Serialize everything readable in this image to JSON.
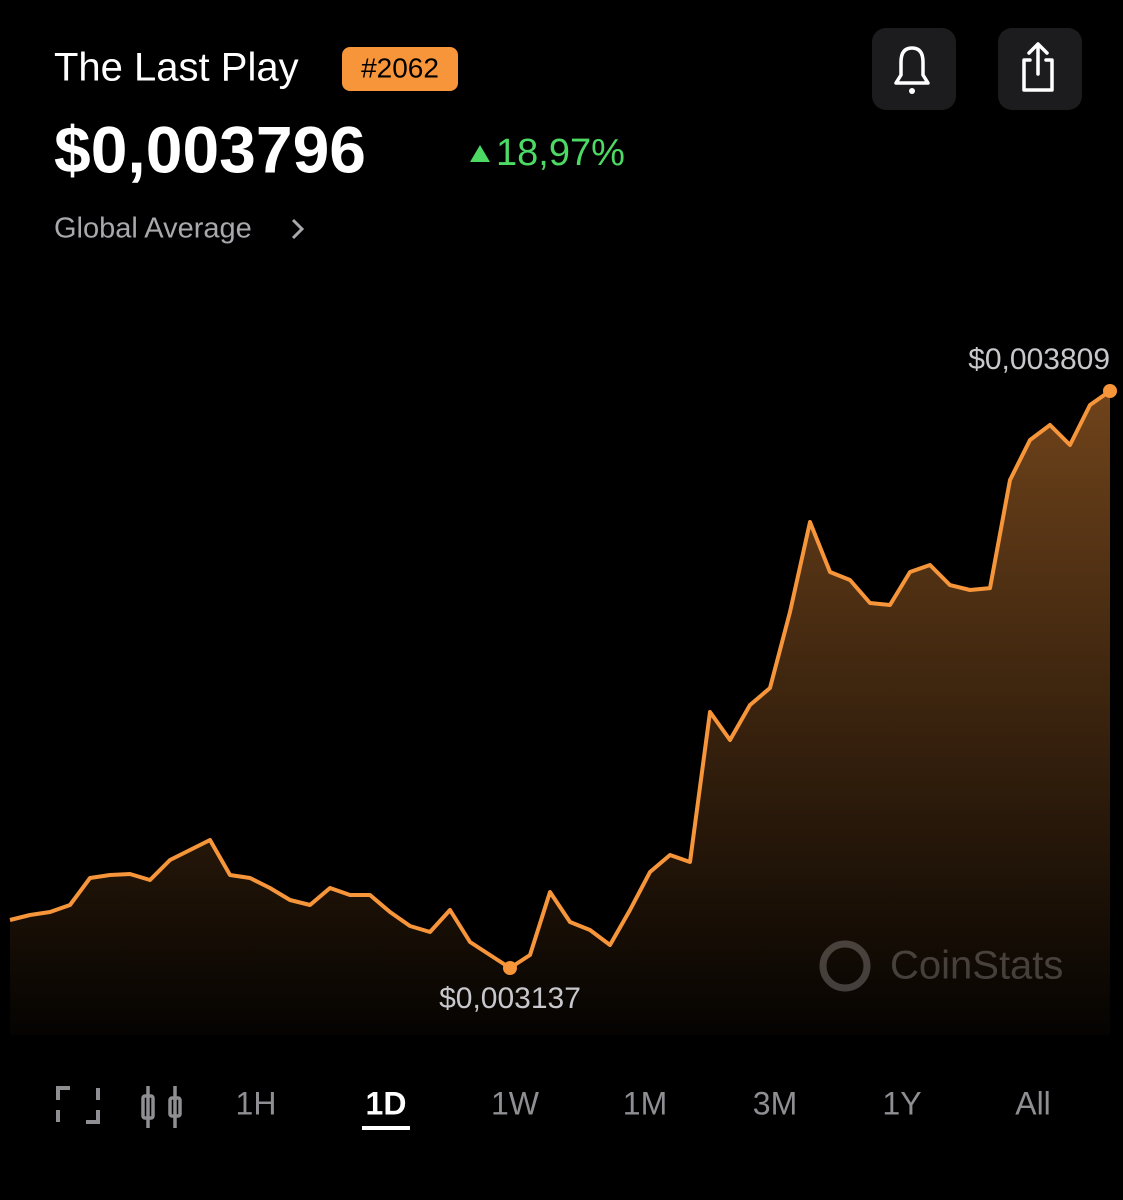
{
  "header": {
    "title": "The Last Play",
    "rank": "#2062",
    "price": "$0,003796",
    "change": "18,97%",
    "subtitle": "Global Average"
  },
  "chart_data": {
    "type": "line",
    "color": "#f7953b",
    "values": [
      0.0031929,
      0.0031987,
      0.0032022,
      0.0032104,
      0.0032418,
      0.0032453,
      0.0032465,
      0.0032395,
      0.0032628,
      0.0032744,
      0.0032861,
      0.0032453,
      0.0032418,
      0.0032302,
      0.0032162,
      0.0032104,
      0.0032302,
      0.003222,
      0.003222,
      0.0032022,
      0.0031859,
      0.0031789,
      0.0032045,
      0.0031673,
      0.0031521,
      0.003137,
      0.0031521,
      0.0032255,
      0.0031906,
      0.0031813,
      0.0031638,
      0.0032045,
      0.0032488,
      0.0032686,
      0.0032604,
      0.0034351,
      0.0034025,
      0.0034433,
      0.0034631,
      0.0035516,
      0.0036564,
      0.0035982,
      0.0035889,
      0.0035621,
      0.0035598,
      0.0035982,
      0.0036063,
      0.003583,
      0.0035772,
      0.0035795,
      0.0037053,
      0.0037519,
      0.0037694,
      0.0037461,
      0.0037927,
      0.003809
    ],
    "annotations": [
      {
        "value": 0.003809,
        "label": "$0,003809"
      },
      {
        "value": 0.003137,
        "label": "$0,003137"
      }
    ],
    "watermark": "CoinStats"
  },
  "timeframes": [
    "1H",
    "1D",
    "1W",
    "1M",
    "3M",
    "1Y",
    "All"
  ]
}
